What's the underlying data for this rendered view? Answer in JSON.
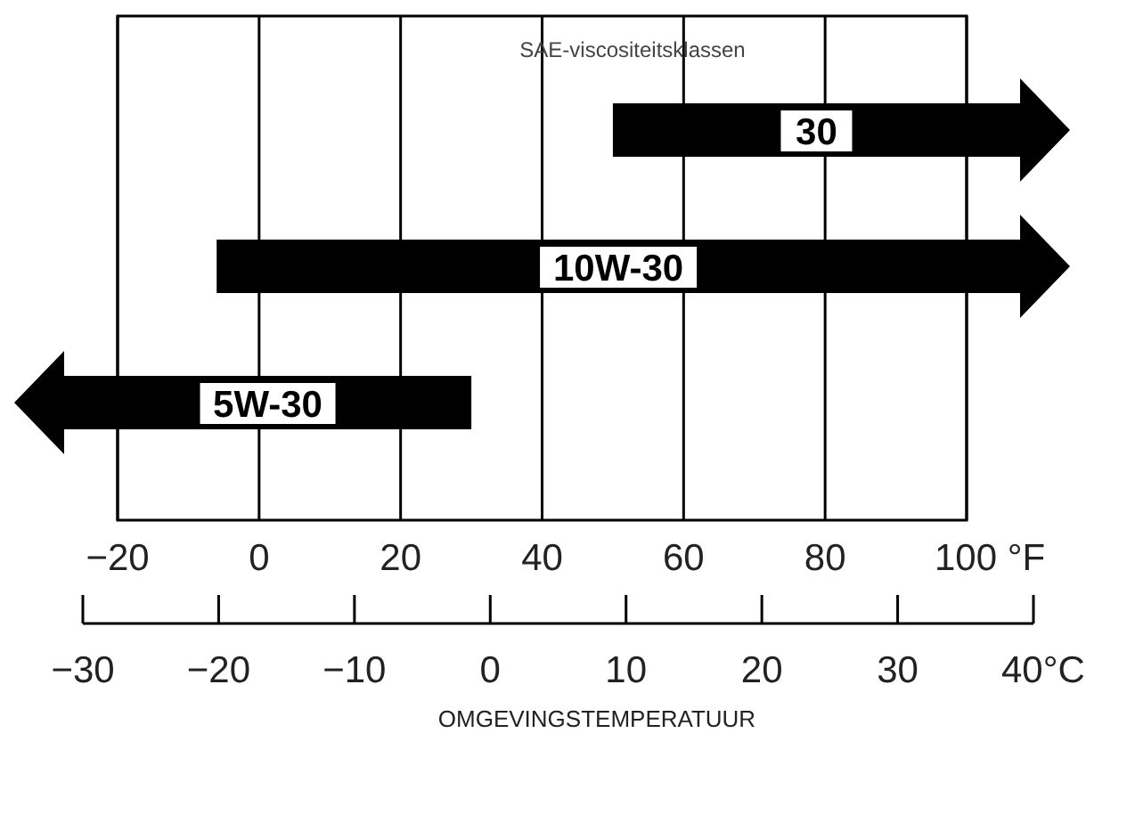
{
  "chart_data": {
    "type": "bar",
    "orientation": "horizontal",
    "title": "SAE-viscositeitsklassen",
    "xlabel": "OMGEVINGSTEMPERATUUR",
    "categories": [
      "30",
      "10W-30",
      "5W-30"
    ],
    "base": [
      50,
      -6,
      -20
    ],
    "values": [
      50,
      106,
      50
    ],
    "color": "#000000",
    "xlim": [
      -20,
      100
    ],
    "xticks": [
      -20,
      0,
      20,
      40,
      60,
      80,
      {
        "value": 100,
        "label": "100 °F"
      }
    ],
    "x2lim": [
      -30,
      40
    ],
    "x2ticks": [
      -30,
      -20,
      -10,
      0,
      10,
      20,
      30,
      {
        "value": 40,
        "label": "40°C"
      }
    ],
    "grid": "x"
  }
}
